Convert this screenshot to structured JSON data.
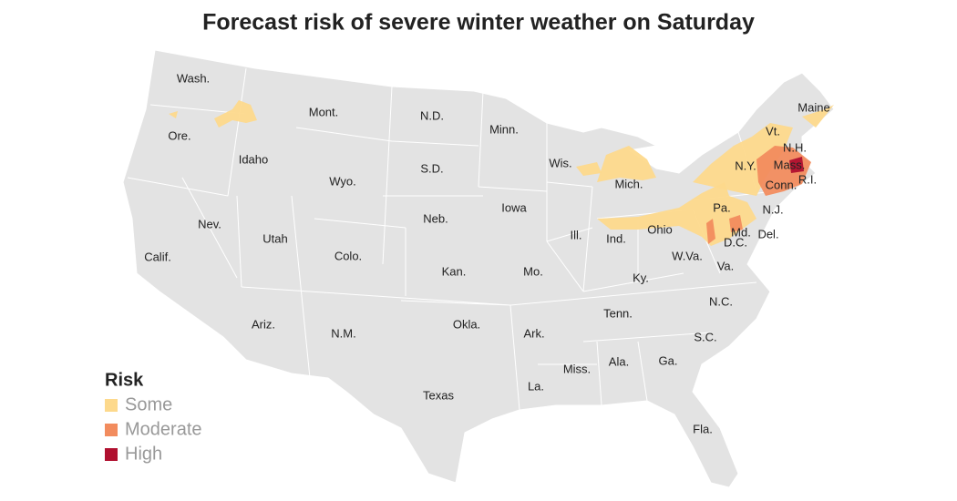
{
  "title": "Forecast risk of severe winter weather on Saturday",
  "states": [
    "Wash.",
    "Ore.",
    "Idaho",
    "Mont.",
    "Wyo.",
    "N.D.",
    "S.D.",
    "Minn.",
    "Wis.",
    "Mich.",
    "Iowa",
    "Neb.",
    "Nev.",
    "Utah",
    "Colo.",
    "Calif.",
    "Ill.",
    "Ind.",
    "Ohio",
    "Pa.",
    "N.Y.",
    "Vt.",
    "N.H.",
    "Maine",
    "Mass.",
    "Conn.",
    "R.I.",
    "N.J.",
    "Md.",
    "Del.",
    "D.C.",
    "W.Va.",
    "Va.",
    "Kan.",
    "Mo.",
    "Ky.",
    "Ariz.",
    "N.M.",
    "Okla.",
    "Ark.",
    "Tenn.",
    "N.C.",
    "S.C.",
    "Miss.",
    "Ala.",
    "Ga.",
    "La.",
    "Texas",
    "Fla."
  ],
  "legend": {
    "title": "Risk",
    "items": [
      {
        "label": "Some",
        "color": "#fdd98c"
      },
      {
        "label": "Moderate",
        "color": "#f28c5e"
      },
      {
        "label": "High",
        "color": "#b0102f"
      }
    ]
  }
}
